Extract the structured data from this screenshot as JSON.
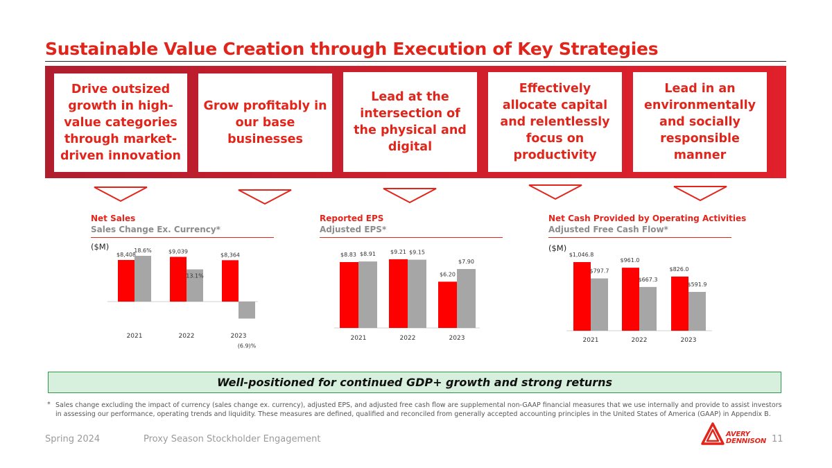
{
  "title": "Sustainable Value Creation through Execution of Key Strategies",
  "strategies": [
    {
      "label": "Drive outsized growth in high-value categories through market-driven innovation"
    },
    {
      "label": "Grow profitably in our base businesses"
    },
    {
      "label": "Lead at the intersection of the physical and digital"
    },
    {
      "label": "Effectively allocate capital and relentlessly focus on productivity"
    },
    {
      "label": "Lead in an environmentally and socially responsible manner"
    }
  ],
  "charts": {
    "sales": {
      "title": "Net Sales",
      "subtitle": "Sales Change Ex. Currency*",
      "unit": "($M)"
    },
    "eps": {
      "title": "Reported EPS",
      "subtitle": "Adjusted EPS*"
    },
    "cash": {
      "title": "Net Cash Provided by Operating Activities",
      "subtitle": "Adjusted Free Cash Flow*",
      "unit": "($M)"
    }
  },
  "chart_data": [
    {
      "type": "bar",
      "title": "Net Sales",
      "subtitle": "Sales Change Ex. Currency*",
      "categories": [
        "2021",
        "2022",
        "2023"
      ],
      "series": [
        {
          "name": "Net Sales ($M)",
          "values": [
            8408,
            9039,
            8364
          ],
          "labels": [
            "$8,408",
            "$9,039",
            "$8,364"
          ]
        },
        {
          "name": "Sales Change Ex. Currency* (%)",
          "values": [
            18.6,
            13.1,
            -6.9
          ],
          "labels": [
            "18.6%",
            "13.1%",
            "(6.9)%"
          ]
        }
      ]
    },
    {
      "type": "bar",
      "title": "Reported EPS",
      "subtitle": "Adjusted EPS*",
      "categories": [
        "2021",
        "2022",
        "2023"
      ],
      "series": [
        {
          "name": "Reported EPS",
          "values": [
            8.83,
            9.21,
            6.2
          ],
          "labels": [
            "$8.83",
            "$9.21",
            "$6.20"
          ]
        },
        {
          "name": "Adjusted EPS*",
          "values": [
            8.91,
            9.15,
            7.9
          ],
          "labels": [
            "$8.91",
            "$9.15",
            "$7.90"
          ]
        }
      ]
    },
    {
      "type": "bar",
      "title": "Net Cash Provided by Operating Activities",
      "subtitle": "Adjusted Free Cash Flow*",
      "categories": [
        "2021",
        "2022",
        "2023"
      ],
      "series": [
        {
          "name": "Net Cash Provided by Operating Activities ($M)",
          "values": [
            1046.8,
            961.0,
            826.0
          ],
          "labels": [
            "$1,046.8",
            "$961.0",
            "$826.0"
          ]
        },
        {
          "name": "Adjusted Free Cash Flow* ($M)",
          "values": [
            797.7,
            667.3,
            591.9
          ],
          "labels": [
            "$797.7",
            "$667.3",
            "$591.9"
          ]
        }
      ]
    }
  ],
  "colors": {
    "primary": "#ff0000",
    "secondary": "#a6a6a6",
    "brand": "#e1251b"
  },
  "banner": "Well-positioned for continued GDP+ growth and strong returns",
  "footnote_marker": "*",
  "footnote": "Sales change excluding the impact of currency (sales change ex. currency), adjusted EPS, and adjusted free cash flow are supplemental non-GAAP financial measures that we use internally and provide to assist investors in assessing our performance, operating trends and liquidity. These measures are defined, qualified and reconciled from generally accepted accounting principles in the United States of America (GAAP) in Appendix B.",
  "footer": {
    "date": "Spring 2024",
    "event": "Proxy Season Stockholder Engagement",
    "page": "11"
  },
  "logo": {
    "line1": "AVERY",
    "line2": "DENNISON"
  }
}
